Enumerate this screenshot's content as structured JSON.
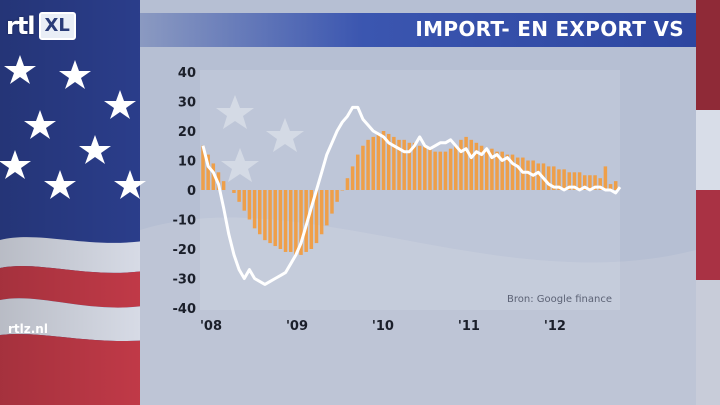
{
  "branding": {
    "logo_main": "rtl",
    "logo_sub": "XL",
    "website": "rtlz.nl"
  },
  "title": "IMPORT- EN EXPORT VS",
  "colors": {
    "bars": "#f39a3a",
    "line": "#ffffff",
    "title_bar": "#3b56b0"
  },
  "chart_data": {
    "type": "bar",
    "title": "IMPORT- EN EXPORT VS",
    "source": "Bron: Google finance",
    "ylim": [
      -40,
      40
    ],
    "yticks": [
      "40",
      "30",
      "20",
      "10",
      "0",
      "-10",
      "-20",
      "-30",
      "-40"
    ],
    "xticks": [
      "'08",
      "'09",
      "'10",
      "'11",
      "'12"
    ],
    "xtick_positions": [
      2008,
      2009,
      2010,
      2011,
      2012
    ],
    "xlim": [
      2008.0,
      2012.85
    ],
    "grid": false,
    "series": [
      {
        "type": "bar",
        "x": [
          2008.0,
          2008.06,
          2008.12,
          2008.18,
          2008.24,
          2008.36,
          2008.42,
          2008.48,
          2008.54,
          2008.6,
          2008.66,
          2008.72,
          2008.78,
          2008.84,
          2008.9,
          2008.96,
          2009.02,
          2009.08,
          2009.14,
          2009.2,
          2009.26,
          2009.32,
          2009.38,
          2009.44,
          2009.5,
          2009.56,
          2009.62,
          2009.68,
          2009.74,
          2009.8,
          2009.86,
          2009.92,
          2009.98,
          2010.04,
          2010.1,
          2010.16,
          2010.22,
          2010.28,
          2010.34,
          2010.4,
          2010.46,
          2010.52,
          2010.58,
          2010.64,
          2010.7,
          2010.76,
          2010.82,
          2010.88,
          2010.94,
          2011.0,
          2011.06,
          2011.12,
          2011.18,
          2011.24,
          2011.3,
          2011.36,
          2011.42,
          2011.48,
          2011.54,
          2011.6,
          2011.66,
          2011.72,
          2011.78,
          2011.84,
          2011.9,
          2011.96,
          2012.02,
          2012.08,
          2012.14,
          2012.2,
          2012.26,
          2012.32,
          2012.38,
          2012.44,
          2012.5,
          2012.56,
          2012.62,
          2012.68,
          2012.74,
          2012.8
        ],
        "values": [
          15,
          12,
          9,
          6,
          3,
          -1,
          -4,
          -7,
          -10,
          -13,
          -15,
          -17,
          -18,
          -19,
          -20,
          -21,
          -21,
          -22,
          -22,
          -21,
          -20,
          -18,
          -15,
          -12,
          -8,
          -4,
          0,
          4,
          8,
          12,
          15,
          17,
          18,
          19,
          20,
          19,
          18,
          17,
          17,
          16,
          16,
          15,
          15,
          14,
          13,
          13,
          13,
          14,
          15,
          17,
          18,
          17,
          16,
          15,
          14,
          14,
          13,
          13,
          12,
          12,
          11,
          11,
          10,
          10,
          9,
          9,
          8,
          8,
          7,
          7,
          6,
          6,
          6,
          5,
          5,
          5,
          4,
          8,
          2,
          3
        ]
      },
      {
        "type": "line",
        "x": [
          2008.0,
          2008.06,
          2008.12,
          2008.18,
          2008.24,
          2008.3,
          2008.36,
          2008.42,
          2008.48,
          2008.54,
          2008.6,
          2008.66,
          2008.72,
          2008.78,
          2008.84,
          2008.9,
          2008.96,
          2009.02,
          2009.08,
          2009.14,
          2009.2,
          2009.26,
          2009.32,
          2009.38,
          2009.44,
          2009.5,
          2009.56,
          2009.62,
          2009.68,
          2009.74,
          2009.8,
          2009.86,
          2009.92,
          2009.98,
          2010.04,
          2010.1,
          2010.16,
          2010.22,
          2010.28,
          2010.34,
          2010.4,
          2010.46,
          2010.52,
          2010.58,
          2010.64,
          2010.7,
          2010.76,
          2010.82,
          2010.88,
          2010.94,
          2011.0,
          2011.06,
          2011.12,
          2011.18,
          2011.24,
          2011.3,
          2011.36,
          2011.42,
          2011.48,
          2011.54,
          2011.6,
          2011.66,
          2011.72,
          2011.78,
          2011.84,
          2011.9,
          2011.96,
          2012.02,
          2012.08,
          2012.14,
          2012.2,
          2012.26,
          2012.32,
          2012.38,
          2012.44,
          2012.5,
          2012.56,
          2012.62,
          2012.68,
          2012.74,
          2012.8,
          2012.85
        ],
        "values": [
          15,
          8,
          6,
          2,
          -6,
          -15,
          -22,
          -27,
          -30,
          -27,
          -30,
          -31,
          -32,
          -31,
          -30,
          -29,
          -28,
          -25,
          -22,
          -18,
          -12,
          -6,
          0,
          6,
          12,
          16,
          20,
          23,
          25,
          28,
          28,
          24,
          22,
          20,
          19,
          18,
          16,
          15,
          14,
          13,
          13,
          15,
          18,
          15,
          14,
          15,
          16,
          16,
          17,
          15,
          13,
          14,
          11,
          13,
          12,
          14,
          11,
          12,
          10,
          11,
          9,
          8,
          6,
          6,
          5,
          6,
          4,
          2,
          1,
          1,
          0,
          1,
          1,
          0,
          1,
          0,
          1,
          1,
          0,
          0,
          -1,
          1
        ]
      }
    ]
  }
}
